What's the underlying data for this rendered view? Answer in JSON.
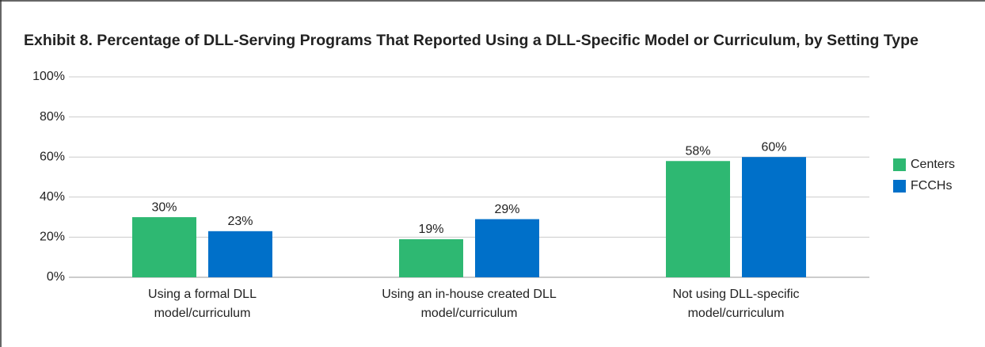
{
  "chart_data": {
    "type": "bar",
    "title": "Exhibit 8. Percentage of DLL-Serving Programs That Reported Using a DLL-Specific Model or Curriculum, by Setting Type",
    "categories": [
      [
        "Using a formal DLL",
        "model/curriculum"
      ],
      [
        "Using an in-house created DLL",
        "model/curriculum"
      ],
      [
        "Not using DLL-specific",
        "model/curriculum"
      ]
    ],
    "series": [
      {
        "name": "Centers",
        "color": "#2eb872",
        "values": [
          30,
          19,
          58
        ],
        "value_labels": [
          "30%",
          "19%",
          "58%"
        ]
      },
      {
        "name": "FCCHs",
        "color": "#0070c9",
        "values": [
          23,
          29,
          60
        ],
        "value_labels": [
          "23%",
          "29%",
          "60%"
        ]
      }
    ],
    "ylim": [
      0,
      100
    ],
    "yticks": [
      {
        "value": 0,
        "label": "0%"
      },
      {
        "value": 20,
        "label": "20%"
      },
      {
        "value": 40,
        "label": "40%"
      },
      {
        "value": 60,
        "label": "60%"
      },
      {
        "value": 80,
        "label": "80%"
      },
      {
        "value": 100,
        "label": "100%"
      }
    ],
    "grid": true,
    "legend": "right"
  }
}
